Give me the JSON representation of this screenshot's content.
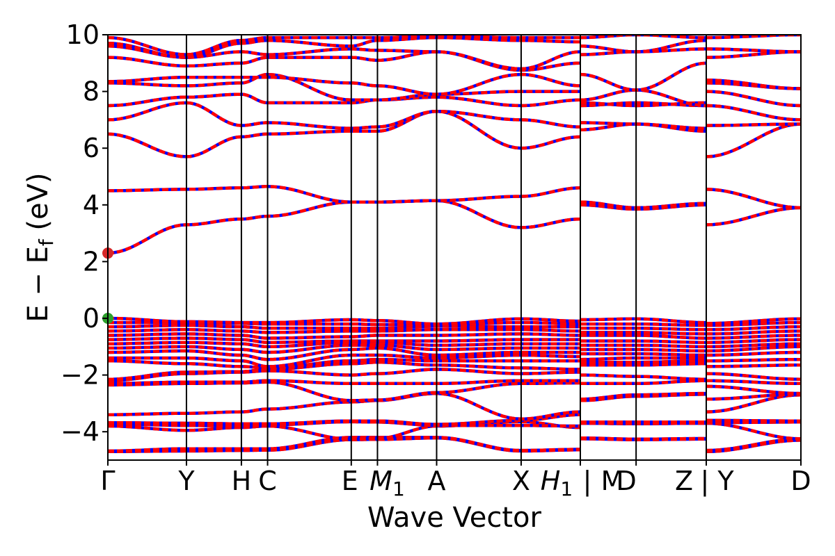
{
  "chart_data": {
    "type": "line",
    "title": "",
    "xlabel": "Wave Vector",
    "ylabel": "E − E",
    "ylabel_sub": "f",
    "ylabel_unit": "(eV)",
    "ylim": [
      -5,
      10
    ],
    "yticks": [
      -4,
      -2,
      0,
      2,
      4,
      6,
      8,
      10
    ],
    "ytick_labels": [
      "−4",
      "−2",
      "0",
      "2",
      "4",
      "6",
      "8",
      "10"
    ],
    "xlim": [
      0,
      8.2
    ],
    "kpoints": [
      {
        "label": "Γ",
        "x": 0.0
      },
      {
        "label": "Y",
        "x": 0.93
      },
      {
        "label": "H",
        "x": 1.58
      },
      {
        "label": "C",
        "x": 1.89
      },
      {
        "label": "E",
        "x": 2.88
      },
      {
        "label": "M",
        "sub": "1",
        "x": 3.19
      },
      {
        "label": "A",
        "x": 3.89
      },
      {
        "label": "X",
        "x": 4.89
      },
      {
        "label": "H",
        "sub": "1",
        "x": 5.59
      },
      {
        "label": "|",
        "x": 5.59
      },
      {
        "label": "M",
        "x": 5.59
      },
      {
        "label": "D",
        "x": 6.25
      },
      {
        "label": "Z",
        "x": 7.08
      },
      {
        "label": "|",
        "x": 7.08
      },
      {
        "label": "Y",
        "x": 7.08
      },
      {
        "label": "D",
        "x": 8.2
      }
    ],
    "segment_breaks": [
      5.59,
      7.08
    ],
    "line_colors": {
      "spin_up": "#ff0000",
      "spin_down": "#0000ff"
    },
    "markers": [
      {
        "name": "CBM",
        "x": 0.0,
        "y": 2.3,
        "color": "#d62728"
      },
      {
        "name": "VBM",
        "x": 0.0,
        "y": 0.0,
        "color": "#2ca02c"
      }
    ],
    "bands": [
      [
        -4.7,
        -4.68,
        -4.66,
        -4.65,
        -4.28,
        -4.27,
        -4.22,
        -4.68,
        -4.64,
        -4.25,
        -4.28,
        -4.26,
        -4.7,
        -4.3
      ],
      [
        -4.68,
        -4.6,
        -4.6,
        -4.6,
        -4.2,
        -4.2,
        -4.2,
        -4.66,
        -4.62,
        -4.22,
        -4.26,
        -4.24,
        -4.66,
        -4.26
      ],
      [
        -3.8,
        -3.95,
        -3.85,
        -3.8,
        -4.26,
        -4.24,
        -3.8,
        -3.65,
        -3.85,
        -3.7,
        -3.72,
        -3.7,
        -3.7,
        -4.25
      ],
      [
        -3.72,
        -3.78,
        -3.8,
        -3.76,
        -3.65,
        -3.66,
        -3.78,
        -3.78,
        -3.8,
        -3.7,
        -3.7,
        -3.7,
        -3.68,
        -3.66
      ],
      [
        -3.68,
        -3.7,
        -3.72,
        -3.72,
        -3.62,
        -3.62,
        -3.74,
        -3.6,
        -3.4,
        -3.66,
        -3.66,
        -3.66,
        -3.6,
        -3.62
      ],
      [
        -3.4,
        -3.35,
        -3.3,
        -3.2,
        -2.95,
        -2.9,
        -2.65,
        -3.55,
        -3.3,
        -2.9,
        -2.75,
        -2.68,
        -3.3,
        -2.7
      ],
      [
        -2.35,
        -2.3,
        -2.28,
        -2.25,
        -2.9,
        -2.88,
        -2.62,
        -2.3,
        -2.28,
        -2.85,
        -2.7,
        -2.65,
        -2.85,
        -2.68
      ],
      [
        -2.3,
        -2.25,
        -2.25,
        -2.2,
        -2.3,
        -2.3,
        -2.3,
        -2.2,
        -2.2,
        -2.3,
        -2.3,
        -2.2,
        -2.4,
        -2.65
      ],
      [
        -2.2,
        -1.95,
        -1.9,
        -1.85,
        -2.0,
        -1.95,
        -1.8,
        -1.95,
        -1.9,
        -2.0,
        -2.05,
        -2.15,
        -2.2,
        -2.3
      ],
      [
        -2.15,
        -1.9,
        -1.88,
        -1.8,
        -1.6,
        -1.55,
        -1.65,
        -1.75,
        -1.8,
        -1.65,
        -1.65,
        -1.6,
        -1.95,
        -2.15
      ],
      [
        -1.5,
        -1.6,
        -1.7,
        -1.75,
        -1.5,
        -1.45,
        -1.5,
        -1.5,
        -1.5,
        -1.55,
        -1.55,
        -1.5,
        -1.7,
        -1.65
      ],
      [
        -1.4,
        -1.4,
        -1.5,
        -1.7,
        -1.3,
        -1.3,
        -1.4,
        -1.3,
        -1.35,
        -1.45,
        -1.4,
        -1.4,
        -1.5,
        -1.45
      ],
      [
        -1.2,
        -1.15,
        -1.3,
        -1.45,
        -1.1,
        -1.05,
        -1.3,
        -1.2,
        -1.2,
        -1.25,
        -1.25,
        -1.3,
        -1.3,
        -1.2
      ],
      [
        -1.05,
        -1.0,
        -1.1,
        -1.2,
        -0.95,
        -0.95,
        -1.1,
        -1.05,
        -1.05,
        -1.1,
        -1.1,
        -1.15,
        -1.15,
        -1.0
      ],
      [
        -0.9,
        -0.85,
        -0.9,
        -1.0,
        -0.85,
        -0.85,
        -0.95,
        -0.9,
        -0.9,
        -0.95,
        -0.95,
        -1.0,
        -1.0,
        -0.9
      ],
      [
        -0.75,
        -0.7,
        -0.75,
        -0.85,
        -0.8,
        -0.8,
        -0.8,
        -0.75,
        -0.75,
        -0.8,
        -0.8,
        -0.85,
        -0.85,
        -0.75
      ],
      [
        -0.6,
        -0.55,
        -0.6,
        -0.7,
        -0.65,
        -0.6,
        -0.6,
        -0.55,
        -0.6,
        -0.6,
        -0.6,
        -0.7,
        -0.7,
        -0.6
      ],
      [
        -0.45,
        -0.4,
        -0.45,
        -0.5,
        -0.45,
        -0.45,
        -0.4,
        -0.4,
        -0.45,
        -0.5,
        -0.5,
        -0.55,
        -0.55,
        -0.45
      ],
      [
        -0.3,
        -0.25,
        -0.3,
        -0.35,
        -0.35,
        -0.35,
        -0.28,
        -0.3,
        -0.3,
        -0.35,
        -0.35,
        -0.4,
        -0.4,
        -0.3
      ],
      [
        -0.15,
        -0.15,
        -0.18,
        -0.2,
        -0.2,
        -0.22,
        -0.22,
        -0.15,
        -0.2,
        -0.2,
        -0.2,
        -0.25,
        -0.25,
        -0.15
      ],
      [
        0.0,
        -0.12,
        -0.15,
        -0.15,
        -0.05,
        -0.08,
        -0.2,
        -0.02,
        -0.1,
        -0.05,
        -0.02,
        -0.15,
        -0.18,
        -0.02
      ],
      [
        2.3,
        3.3,
        3.5,
        3.6,
        4.1,
        4.1,
        4.15,
        3.2,
        3.5,
        4.0,
        3.85,
        4.0,
        3.3,
        3.9
      ],
      [
        4.5,
        4.55,
        4.6,
        4.65,
        4.1,
        4.1,
        4.15,
        4.3,
        4.6,
        4.1,
        3.9,
        4.05,
        4.55,
        3.9
      ],
      [
        6.5,
        5.7,
        6.4,
        6.5,
        6.6,
        6.6,
        7.3,
        6.0,
        6.4,
        6.65,
        6.85,
        6.6,
        5.7,
        6.85
      ],
      [
        7.0,
        7.6,
        6.8,
        6.9,
        6.7,
        6.75,
        7.3,
        7.0,
        6.75,
        6.9,
        6.85,
        6.7,
        6.8,
        6.85
      ],
      [
        7.5,
        7.8,
        7.9,
        7.6,
        7.6,
        7.7,
        7.8,
        7.5,
        7.7,
        7.5,
        7.6,
        7.5,
        7.5,
        7.0
      ],
      [
        8.3,
        8.2,
        8.3,
        8.6,
        7.7,
        7.7,
        7.9,
        8.0,
        8.0,
        7.6,
        7.5,
        7.6,
        8.0,
        7.5
      ],
      [
        8.35,
        8.5,
        8.5,
        8.5,
        8.3,
        8.2,
        7.9,
        8.6,
        8.2,
        7.7,
        8.05,
        7.5,
        8.3,
        8.1
      ],
      [
        9.2,
        8.9,
        9.0,
        9.2,
        9.2,
        9.1,
        9.4,
        8.75,
        9.0,
        8.6,
        8.05,
        9.0,
        8.4,
        8.1
      ],
      [
        9.6,
        9.2,
        9.4,
        9.3,
        9.5,
        9.45,
        9.4,
        8.8,
        9.4,
        9.3,
        9.4,
        9.5,
        9.2,
        9.4
      ],
      [
        9.7,
        9.2,
        9.7,
        9.8,
        9.6,
        9.8,
        9.9,
        9.8,
        9.75,
        9.6,
        9.4,
        9.8,
        9.5,
        9.4
      ],
      [
        9.9,
        9.3,
        9.8,
        9.9,
        9.9,
        9.9,
        9.95,
        9.9,
        9.9,
        9.9,
        10.0,
        9.9,
        9.9,
        10.0
      ]
    ]
  }
}
